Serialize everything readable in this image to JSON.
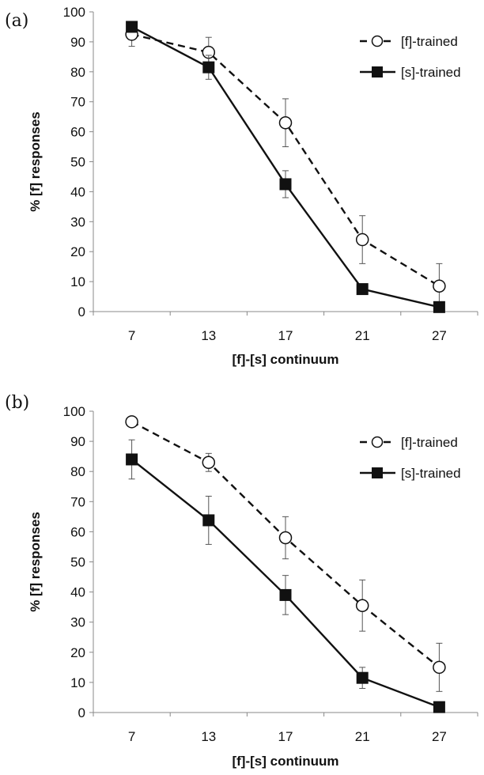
{
  "chart_data": [
    {
      "panel_label": "(a)",
      "type": "line",
      "categories": [
        "7",
        "13",
        "17",
        "21",
        "27"
      ],
      "xlabel": "[f]-[s] continuum",
      "ylabel": "% [f] responses",
      "ylim": [
        0,
        100
      ],
      "yticks": [
        0,
        10,
        20,
        30,
        40,
        50,
        60,
        70,
        80,
        90,
        100
      ],
      "legend_position": "top-right",
      "series": [
        {
          "name": "[f]-trained",
          "style": "dashed",
          "marker": "open-circle",
          "values": [
            92.5,
            86.5,
            63,
            24,
            8.5
          ],
          "errors": [
            4,
            5,
            8,
            8,
            7.5
          ]
        },
        {
          "name": "[s]-trained",
          "style": "solid",
          "marker": "filled-square",
          "values": [
            95,
            81.5,
            42.5,
            7.5,
            1.5
          ],
          "errors": [
            1,
            4,
            4.5,
            0,
            1
          ]
        }
      ]
    },
    {
      "panel_label": "(b)",
      "type": "line",
      "categories": [
        "7",
        "13",
        "17",
        "21",
        "27"
      ],
      "xlabel": "[f]-[s] continuum",
      "ylabel": "% [f] responses",
      "ylim": [
        0,
        100
      ],
      "yticks": [
        0,
        10,
        20,
        30,
        40,
        50,
        60,
        70,
        80,
        90,
        100
      ],
      "legend_position": "top-right",
      "series": [
        {
          "name": "[f]-trained",
          "style": "dashed",
          "marker": "open-circle",
          "values": [
            96.5,
            83,
            58,
            35.5,
            15
          ],
          "errors": [
            1.5,
            3,
            7,
            8.5,
            8
          ]
        },
        {
          "name": "[s]-trained",
          "style": "solid",
          "marker": "filled-square",
          "values": [
            84,
            63.8,
            39,
            11.5,
            1.8
          ],
          "errors": [
            6.5,
            8,
            6.5,
            3.5,
            1
          ]
        }
      ]
    }
  ]
}
